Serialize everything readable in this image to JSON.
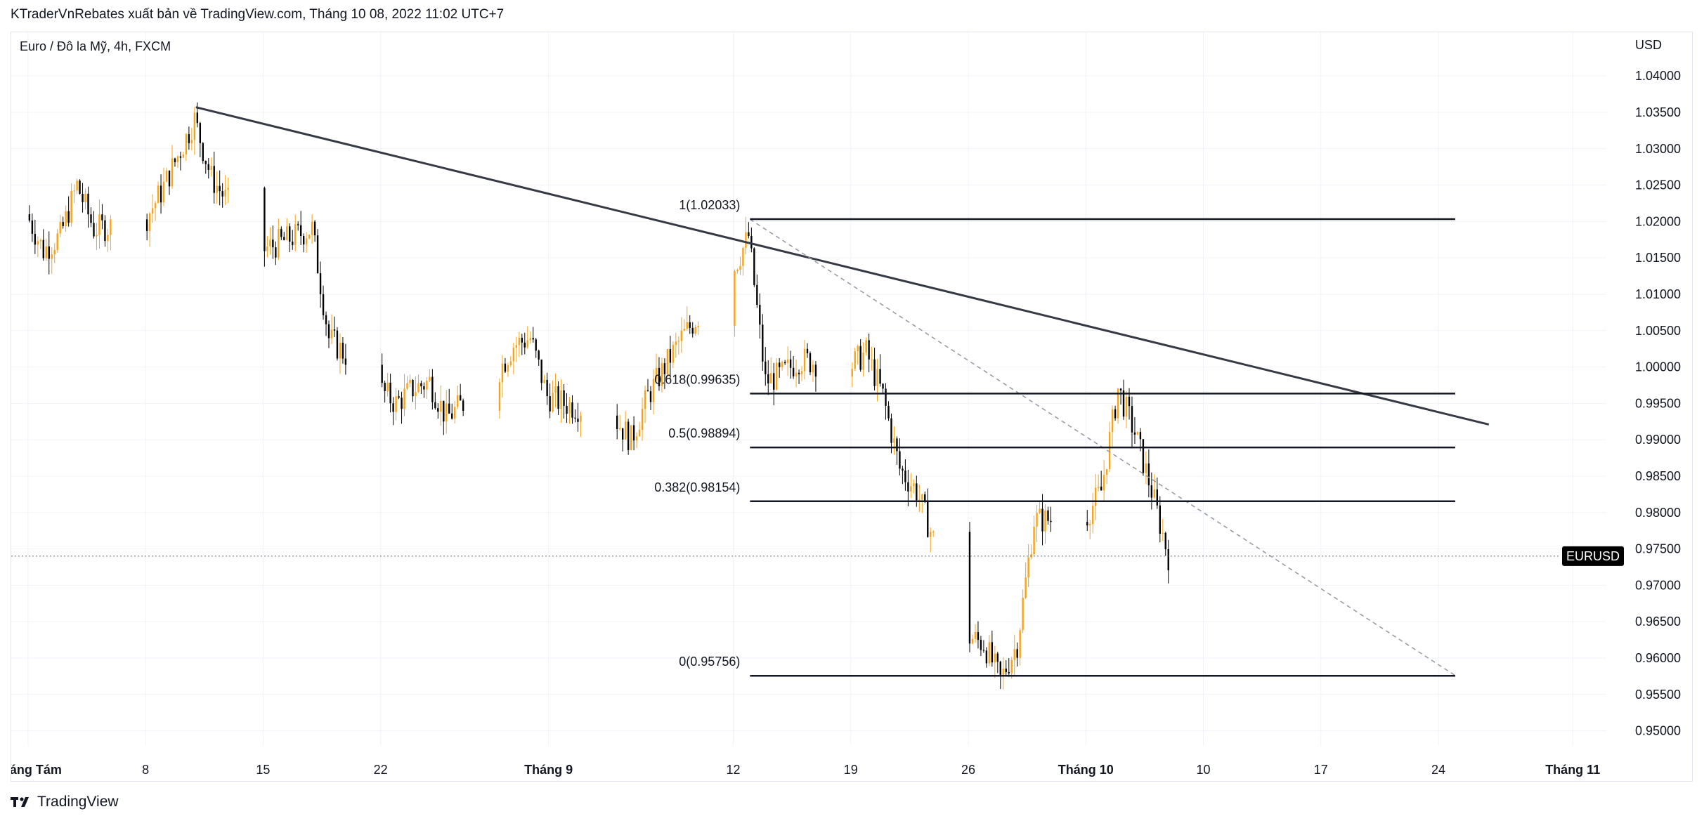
{
  "header": {
    "publish_line": "KTraderVnRebates xuất bản về TradingView.com, Tháng 10 08, 2022 11:02 UTC+7"
  },
  "footer": {
    "brand": "TradingView"
  },
  "colors": {
    "up_candle": "#f7a21b",
    "down_candle": "#000000",
    "trendline": "#363a45",
    "fib_level": "#131722",
    "grid": "#f0f3fa",
    "text": "#131722"
  },
  "chart_data": {
    "type": "candlestick",
    "symbol_title": "Euro / Đô la Mỹ, 4h, FXCM",
    "currency_label": "USD",
    "current_price_label": "EURUSD",
    "current_price": 0.974,
    "y_range": [
      0.946,
      1.046
    ],
    "x_range_days": [
      "2022-07-31",
      "2022-11-03"
    ],
    "y_ticks": [
      "0.95000",
      "0.95500",
      "0.96000",
      "0.96500",
      "0.97000",
      "0.97500",
      "0.98000",
      "0.98500",
      "0.99000",
      "0.99500",
      "1.00000",
      "1.00500",
      "1.01000",
      "1.01500",
      "1.02000",
      "1.02500",
      "1.03000",
      "1.03500",
      "1.04000"
    ],
    "x_ticks": [
      {
        "date": "2022-08-01",
        "label": "Tháng Tám",
        "bold": true
      },
      {
        "date": "2022-08-08",
        "label": "8",
        "bold": false
      },
      {
        "date": "2022-08-15",
        "label": "15",
        "bold": false
      },
      {
        "date": "2022-08-22",
        "label": "22",
        "bold": false
      },
      {
        "date": "2022-09-01",
        "label": "Tháng 9",
        "bold": true
      },
      {
        "date": "2022-09-12",
        "label": "12",
        "bold": false
      },
      {
        "date": "2022-09-19",
        "label": "19",
        "bold": false
      },
      {
        "date": "2022-09-26",
        "label": "26",
        "bold": false
      },
      {
        "date": "2022-10-03",
        "label": "Tháng 10",
        "bold": true
      },
      {
        "date": "2022-10-10",
        "label": "10",
        "bold": false
      },
      {
        "date": "2022-10-17",
        "label": "17",
        "bold": false
      },
      {
        "date": "2022-10-24",
        "label": "24",
        "bold": false
      },
      {
        "date": "2022-11-01",
        "label": "Tháng 11",
        "bold": true
      }
    ],
    "fib_levels": [
      {
        "label": "1(1.02033)",
        "value": 1.02033
      },
      {
        "label": "0.618(0.99635)",
        "value": 0.99635
      },
      {
        "label": "0.5(0.98894)",
        "value": 0.98894
      },
      {
        "label": "0.382(0.98154)",
        "value": 0.98154
      },
      {
        "label": "0(0.95756)",
        "value": 0.95756
      }
    ],
    "fib_range_dates": [
      "2022-09-13",
      "2022-10-25"
    ],
    "trendline": {
      "start": {
        "date": "2022-08-11",
        "price": 1.0357
      },
      "end": {
        "date": "2022-10-27",
        "price": 0.9921
      }
    },
    "fib_diagonal": {
      "start": {
        "date": "2022-09-13",
        "price": 1.0203
      },
      "end": {
        "date": "2022-10-25",
        "price": 0.9576
      }
    },
    "price_path": [
      {
        "date": "2022-08-01",
        "price": 1.021
      },
      {
        "date": "2022-08-02",
        "price": 1.016
      },
      {
        "date": "2022-08-03",
        "price": 1.018
      },
      {
        "date": "2022-08-04",
        "price": 1.025
      },
      {
        "date": "2022-08-05",
        "price": 1.019
      },
      {
        "date": "2022-08-08",
        "price": 1.02
      },
      {
        "date": "2022-08-09",
        "price": 1.024
      },
      {
        "date": "2022-08-10",
        "price": 1.029
      },
      {
        "date": "2022-08-11",
        "price": 1.034
      },
      {
        "date": "2022-08-12",
        "price": 1.026
      },
      {
        "date": "2022-08-15",
        "price": 1.016
      },
      {
        "date": "2022-08-16",
        "price": 1.017
      },
      {
        "date": "2022-08-17",
        "price": 1.018
      },
      {
        "date": "2022-08-18",
        "price": 1.019
      },
      {
        "date": "2022-08-19",
        "price": 1.004
      },
      {
        "date": "2022-08-22",
        "price": 0.997
      },
      {
        "date": "2022-08-23",
        "price": 0.995
      },
      {
        "date": "2022-08-24",
        "price": 0.997
      },
      {
        "date": "2022-08-25",
        "price": 0.998
      },
      {
        "date": "2022-08-26",
        "price": 0.993
      },
      {
        "date": "2022-08-29",
        "price": 0.999
      },
      {
        "date": "2022-08-30",
        "price": 1.003
      },
      {
        "date": "2022-08-31",
        "price": 1.004
      },
      {
        "date": "2022-09-01",
        "price": 0.996
      },
      {
        "date": "2022-09-02",
        "price": 0.995
      },
      {
        "date": "2022-09-05",
        "price": 0.993
      },
      {
        "date": "2022-09-06",
        "price": 0.99
      },
      {
        "date": "2022-09-07",
        "price": 0.996
      },
      {
        "date": "2022-09-08",
        "price": 1.0
      },
      {
        "date": "2022-09-09",
        "price": 1.004
      },
      {
        "date": "2022-09-12",
        "price": 1.013
      },
      {
        "date": "2022-09-13",
        "price": 1.018
      },
      {
        "date": "2022-09-14",
        "price": 0.998
      },
      {
        "date": "2022-09-15",
        "price": 0.999
      },
      {
        "date": "2022-09-16",
        "price": 1.001
      },
      {
        "date": "2022-09-19",
        "price": 1.0
      },
      {
        "date": "2022-09-20",
        "price": 1.002
      },
      {
        "date": "2022-09-21",
        "price": 0.996
      },
      {
        "date": "2022-09-22",
        "price": 0.986
      },
      {
        "date": "2022-09-23",
        "price": 0.983
      },
      {
        "date": "2022-09-26",
        "price": 0.963
      },
      {
        "date": "2022-09-27",
        "price": 0.962
      },
      {
        "date": "2022-09-28",
        "price": 0.957
      },
      {
        "date": "2022-09-29",
        "price": 0.962
      },
      {
        "date": "2022-09-30",
        "price": 0.979
      },
      {
        "date": "2022-10-03",
        "price": 0.979
      },
      {
        "date": "2022-10-04",
        "price": 0.983
      },
      {
        "date": "2022-10-05",
        "price": 0.997
      },
      {
        "date": "2022-10-06",
        "price": 0.991
      },
      {
        "date": "2022-10-07",
        "price": 0.983
      },
      {
        "date": "2022-10-08",
        "price": 0.974
      }
    ]
  }
}
